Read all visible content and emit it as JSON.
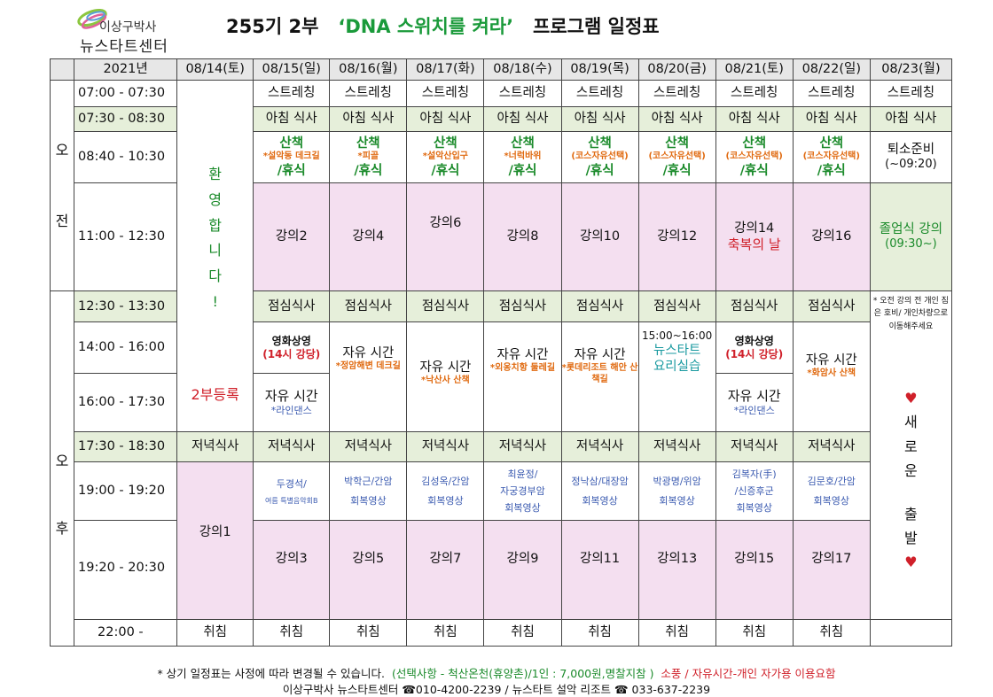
{
  "header": {
    "logo_line1": "이상구박사",
    "logo_line2": "뉴스타트센터",
    "title_prefix": "255기 2부",
    "title_theme": "‘DNA 스위치를 켜라’",
    "title_suffix": "프로그램 일정표"
  },
  "table": {
    "year": "2021년",
    "dates": [
      "08/14(토)",
      "08/15(일)",
      "08/16(월)",
      "08/17(화)",
      "08/18(수)",
      "08/19(목)",
      "08/20(금)",
      "08/21(토)",
      "08/22(일)",
      "08/23(월)"
    ],
    "am": "오\n\n\n\n전",
    "pm_top": "오",
    "pm_bottom": "후",
    "times": [
      "07:00 - 07:30",
      "07:30 - 08:30",
      "08:40 - 10:30",
      "11:00 - 12:30",
      "12:30 - 13:30",
      "14:00 - 16:00",
      "16:00 - 17:30",
      "17:30 - 18:30",
      "19:00 - 19:20",
      "19:20 - 20:30",
      "22:00 -"
    ],
    "stretch": "스트레칭",
    "breakfast": "아침 식사",
    "lunch": "점심식사",
    "dinner": "저녁식사",
    "sleep": "취침",
    "welcome": [
      "환",
      "영",
      "합",
      "니",
      "다",
      "!"
    ],
    "register": "2부등록",
    "walk": "산책",
    "rest": "/휴식",
    "walk_notes": [
      "*설악동 데크길",
      "*피골",
      "*설악산입구",
      "*너럭바위",
      "(코스자유선택)",
      "(코스자유선택)",
      "(코스자유선택)",
      "(코스자유선택)"
    ],
    "checkout": "퇴소준비",
    "checkout_time": "(~09:20)",
    "lectures_am": [
      "강의2",
      "강의4",
      "강의6",
      "강의8",
      "강의10",
      "강의12",
      "강의14",
      "강의16"
    ],
    "blessing": "축복의 날",
    "graduation": "졸업식 강의",
    "graduation_time": "(09:30~)",
    "notice_0823": "* 오전 강의 전 개인 짐은 호비/ 개인차량으로 이동해주세요",
    "farewell": [
      "♥",
      "새",
      "로",
      "운",
      "",
      "출",
      "발",
      "♥"
    ],
    "movie": "영화상영",
    "movie_place": "(14시 강당)",
    "free_time": "자유 시간",
    "line_dance": "*라인댄스",
    "free_notes": {
      "d16": "*정암해변 데크길",
      "d17": "*낙산사 산책",
      "d18": "*외옹치항 둘레길",
      "d19": "*롯데리조트 해안 산책길",
      "d22": "*화암사 산책"
    },
    "cooking_time": "15:00~16:00",
    "cooking_title": "뉴스타트",
    "cooking_sub": "요리실습",
    "evening_speakers": [
      [
        "두경석/",
        "여름 특별음악회B"
      ],
      [
        "박학근/간암",
        "회복영상"
      ],
      [
        "김성옥/간암",
        "회복영상"
      ],
      [
        "최윤정/",
        "자궁경부암",
        "회복영상"
      ],
      [
        "정낙삼/대장암",
        "회복영상"
      ],
      [
        "박광명/위암",
        "회복영상"
      ],
      [
        "김복자(手)",
        "/신증후군",
        "회복영상"
      ],
      [
        "김문호/간암",
        "회복영상"
      ]
    ],
    "lecture1": "강의1",
    "lectures_pm": [
      "강의3",
      "강의5",
      "강의7",
      "강의9",
      "강의11",
      "강의13",
      "강의15",
      "강의17"
    ]
  },
  "footer": {
    "note": "* 상기 일정표는 사정에 따라 변경될 수 있습니다.",
    "option": "(선택사항 - 척산온천(휴양촌)/1인 : 7,000원,명찰지참 )",
    "gear": "소풍 / 자유시간-개인 자가용 이용요함",
    "contact": "이상구박사 뉴스타트센터 ☎010-4200-2239 /  뉴스타트 설악 리조트 ☎ 033-637-2239"
  },
  "colors": {
    "meal_bg": "#e6efda",
    "lecture_bg": "#f4dff0",
    "header_bg": "#e7e7e7",
    "green": "#1a8a2a",
    "red": "#d0202a",
    "orange": "#e06a10",
    "blue": "#3a5ab0"
  }
}
